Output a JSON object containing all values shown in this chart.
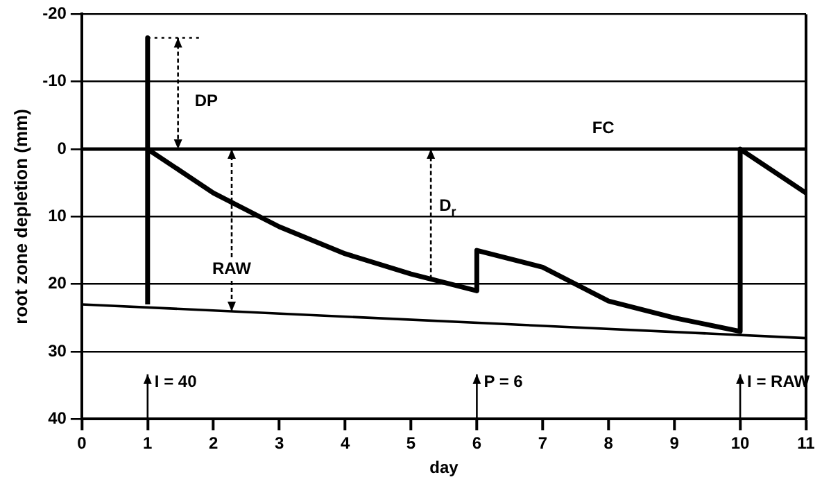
{
  "chart_data": {
    "type": "line",
    "xlabel": "day",
    "ylabel": "root zone depletion (mm)",
    "xlim": [
      0,
      11
    ],
    "xticks": [
      0,
      1,
      2,
      3,
      4,
      5,
      6,
      7,
      8,
      9,
      10,
      11
    ],
    "ylim": [
      40,
      -20
    ],
    "yticks": [
      -20,
      -10,
      0,
      10,
      20,
      30,
      40
    ],
    "grid": "y",
    "series": [
      {
        "color": "#000000",
        "x": [
          1,
          1,
          1,
          2,
          3,
          4,
          5,
          6,
          6,
          7,
          8,
          9,
          10,
          10,
          11
        ],
        "values": [
          23,
          -16.5,
          0,
          6.5,
          11.5,
          15.5,
          18.5,
          21,
          15,
          17.5,
          22.5,
          25,
          27,
          0,
          6.5
        ]
      },
      {
        "color": "#000000",
        "x": [
          0,
          11
        ],
        "values": [
          23,
          28
        ]
      },
      {
        "color": "#000000",
        "x": [
          1,
          1.8
        ],
        "values": [
          -16.5,
          -16.5
        ],
        "line_style": "dotted"
      }
    ],
    "ref_lines": [
      {
        "axis": "y",
        "value": 0,
        "label": "FC"
      }
    ],
    "annotations": [
      "DP",
      "D$_{r}$",
      "RAW",
      {
        "text": "I = 40",
        "x": 1
      },
      {
        "text": "P = 6",
        "x": 6
      },
      {
        "text": "I = RAW",
        "x": 10
      }
    ]
  }
}
